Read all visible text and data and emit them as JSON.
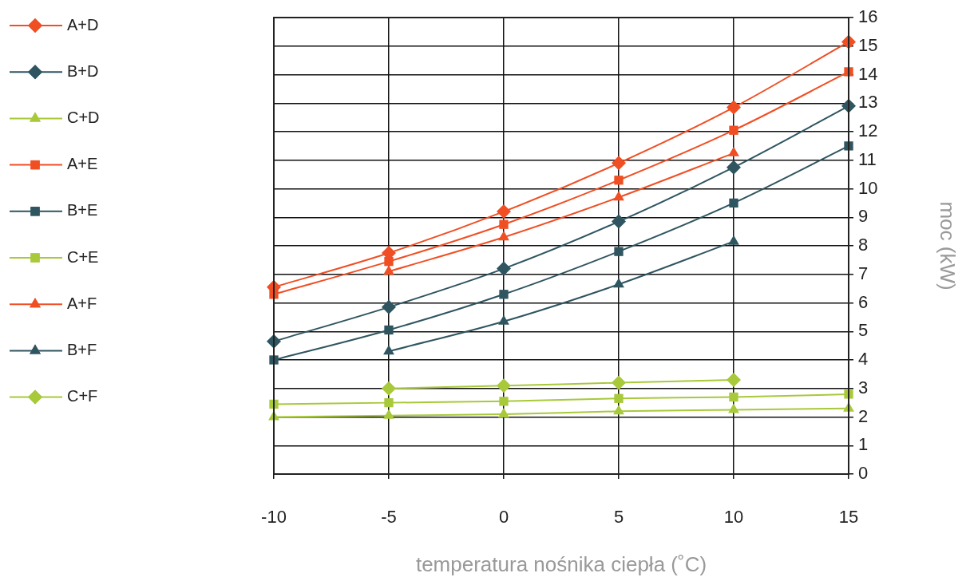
{
  "chart_data": {
    "type": "line",
    "xlabel": "temperatura nośnika ciepła (˚C)",
    "ylabel": "moc (kW)",
    "x": [
      -10,
      -5,
      0,
      5,
      10,
      15
    ],
    "series": [
      {
        "name": "A+D",
        "color": "#f04e23",
        "marker": "diamond",
        "values": [
          6.55,
          7.75,
          9.2,
          10.9,
          12.85,
          15.15
        ]
      },
      {
        "name": "B+D",
        "color": "#2f5560",
        "marker": "diamond",
        "values": [
          4.65,
          5.85,
          7.2,
          8.85,
          10.75,
          12.9
        ]
      },
      {
        "name": "C+D",
        "color": "#a8c93a",
        "marker": "triangle",
        "values": [
          2.0,
          2.05,
          2.1,
          2.2,
          2.25,
          2.3
        ]
      },
      {
        "name": "A+E",
        "color": "#f04e23",
        "marker": "square",
        "values": [
          6.3,
          7.45,
          8.75,
          10.3,
          12.05,
          14.1
        ]
      },
      {
        "name": "B+E",
        "color": "#2f5560",
        "marker": "square",
        "values": [
          4.0,
          5.05,
          6.3,
          7.8,
          9.5,
          11.5
        ]
      },
      {
        "name": "C+E",
        "color": "#a8c93a",
        "marker": "square",
        "values": [
          2.45,
          2.5,
          2.55,
          2.65,
          2.7,
          2.8
        ]
      },
      {
        "name": "A+F",
        "color": "#f04e23",
        "marker": "triangle",
        "values": [
          null,
          7.1,
          8.3,
          9.7,
          11.25,
          null
        ]
      },
      {
        "name": "B+F",
        "color": "#2f5560",
        "marker": "triangle",
        "values": [
          null,
          4.3,
          5.35,
          6.65,
          8.15,
          null
        ]
      },
      {
        "name": "C+F",
        "color": "#a8c93a",
        "marker": "diamond",
        "values": [
          null,
          3.0,
          3.1,
          3.2,
          3.3,
          null
        ]
      }
    ],
    "xlim": [
      -10,
      15
    ],
    "xticks": [
      -10,
      -5,
      0,
      5,
      10,
      15
    ],
    "ylim": [
      0,
      16
    ],
    "yticks": [
      0,
      1,
      2,
      3,
      4,
      5,
      6,
      7,
      8,
      9,
      10,
      11,
      12,
      13,
      14,
      15,
      16
    ],
    "grid": true,
    "legend": "left",
    "line_style": "solid"
  }
}
